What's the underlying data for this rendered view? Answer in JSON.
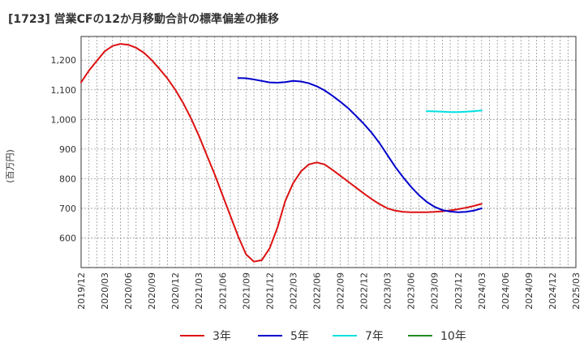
{
  "chart_data": {
    "type": "line",
    "title": "[1723]  営業CFの12か月移動合計の標準偏差の推移",
    "ylabel": "(百万円)",
    "xlabel": "",
    "ylim": [
      500,
      1280
    ],
    "yticks": [
      600,
      700,
      800,
      900,
      1000,
      1100,
      1200
    ],
    "ytick_labels": [
      "600",
      "700",
      "800",
      "900",
      "1,000",
      "1,100",
      "1,200"
    ],
    "x_start": "2019-12",
    "x_end": "2025-03",
    "xtick_labels": [
      "2019/12",
      "2020/03",
      "2020/06",
      "2020/09",
      "2020/12",
      "2021/03",
      "2021/06",
      "2021/09",
      "2021/12",
      "2022/03",
      "2022/06",
      "2022/09",
      "2022/12",
      "2023/03",
      "2023/06",
      "2023/09",
      "2023/12",
      "2024/03",
      "2024/06",
      "2024/09",
      "2024/12",
      "2025/03"
    ],
    "grid": true,
    "legend_position": "bottom",
    "colors": {
      "3年": "#dd1111",
      "5年": "#0000cc",
      "7年": "#00e0e0",
      "10年": "#228b22"
    },
    "series": [
      {
        "name": "3年",
        "points": [
          [
            "2019-12",
            1125
          ],
          [
            "2020-01",
            1165
          ],
          [
            "2020-02",
            1198
          ],
          [
            "2020-03",
            1230
          ],
          [
            "2020-04",
            1248
          ],
          [
            "2020-05",
            1255
          ],
          [
            "2020-06",
            1252
          ],
          [
            "2020-07",
            1242
          ],
          [
            "2020-08",
            1225
          ],
          [
            "2020-09",
            1200
          ],
          [
            "2020-10",
            1170
          ],
          [
            "2020-11",
            1138
          ],
          [
            "2020-12",
            1100
          ],
          [
            "2021-01",
            1055
          ],
          [
            "2021-02",
            1003
          ],
          [
            "2021-03",
            945
          ],
          [
            "2021-04",
            880
          ],
          [
            "2021-05",
            815
          ],
          [
            "2021-06",
            745
          ],
          [
            "2021-07",
            675
          ],
          [
            "2021-08",
            605
          ],
          [
            "2021-09",
            545
          ],
          [
            "2021-10",
            520
          ],
          [
            "2021-11",
            525
          ],
          [
            "2021-12",
            565
          ],
          [
            "2022-01",
            635
          ],
          [
            "2022-02",
            725
          ],
          [
            "2022-03",
            785
          ],
          [
            "2022-04",
            825
          ],
          [
            "2022-05",
            848
          ],
          [
            "2022-06",
            855
          ],
          [
            "2022-07",
            848
          ],
          [
            "2022-08",
            830
          ],
          [
            "2022-09",
            810
          ],
          [
            "2022-10",
            790
          ],
          [
            "2022-11",
            770
          ],
          [
            "2022-12",
            750
          ],
          [
            "2023-01",
            731
          ],
          [
            "2023-02",
            714
          ],
          [
            "2023-03",
            700
          ],
          [
            "2023-04",
            692
          ],
          [
            "2023-05",
            688
          ],
          [
            "2023-06",
            687
          ],
          [
            "2023-07",
            687
          ],
          [
            "2023-08",
            687
          ],
          [
            "2023-09",
            688
          ],
          [
            "2023-10",
            690
          ],
          [
            "2023-11",
            693
          ],
          [
            "2023-12",
            697
          ],
          [
            "2024-01",
            702
          ],
          [
            "2024-02",
            708
          ],
          [
            "2024-03",
            715
          ]
        ]
      },
      {
        "name": "5年",
        "points": [
          [
            "2021-08",
            1140
          ],
          [
            "2021-09",
            1139
          ],
          [
            "2021-10",
            1135
          ],
          [
            "2021-11",
            1130
          ],
          [
            "2021-12",
            1125
          ],
          [
            "2022-01",
            1124
          ],
          [
            "2022-02",
            1126
          ],
          [
            "2022-03",
            1130
          ],
          [
            "2022-04",
            1128
          ],
          [
            "2022-05",
            1122
          ],
          [
            "2022-06",
            1112
          ],
          [
            "2022-07",
            1098
          ],
          [
            "2022-08",
            1080
          ],
          [
            "2022-09",
            1060
          ],
          [
            "2022-10",
            1038
          ],
          [
            "2022-11",
            1012
          ],
          [
            "2022-12",
            985
          ],
          [
            "2023-01",
            955
          ],
          [
            "2023-02",
            920
          ],
          [
            "2023-03",
            880
          ],
          [
            "2023-04",
            840
          ],
          [
            "2023-05",
            805
          ],
          [
            "2023-06",
            773
          ],
          [
            "2023-07",
            745
          ],
          [
            "2023-08",
            722
          ],
          [
            "2023-09",
            705
          ],
          [
            "2023-10",
            694
          ],
          [
            "2023-11",
            689
          ],
          [
            "2023-12",
            687
          ],
          [
            "2024-01",
            688
          ],
          [
            "2024-02",
            692
          ],
          [
            "2024-03",
            700
          ]
        ]
      },
      {
        "name": "7年",
        "points": [
          [
            "2023-08",
            1028
          ],
          [
            "2023-09",
            1027
          ],
          [
            "2023-10",
            1026
          ],
          [
            "2023-11",
            1025
          ],
          [
            "2023-12",
            1025
          ],
          [
            "2024-01",
            1026
          ],
          [
            "2024-02",
            1028
          ],
          [
            "2024-03",
            1030
          ]
        ]
      },
      {
        "name": "10年",
        "points": []
      }
    ]
  }
}
